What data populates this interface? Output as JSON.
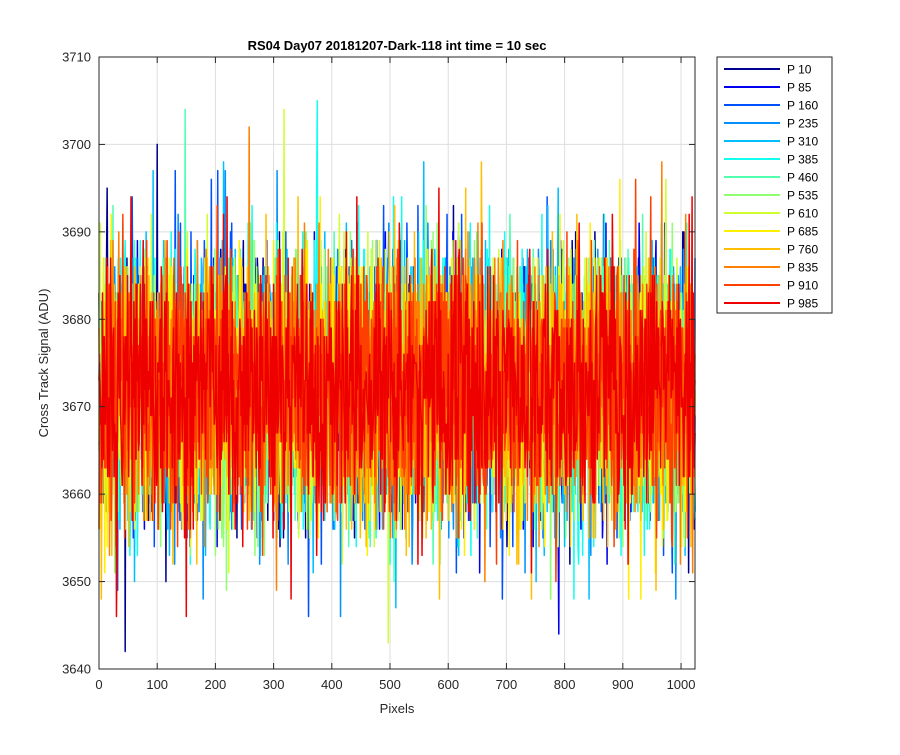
{
  "chart_data": {
    "type": "line",
    "title": "RS04 Day07 20181207-Dark-118 int time = 10 sec",
    "xlabel": "Pixels",
    "ylabel": "Cross Track Signal (ADU)",
    "xlim": [
      0,
      1024
    ],
    "ylim": [
      3640,
      3710
    ],
    "xticks": [
      0,
      100,
      200,
      300,
      400,
      500,
      600,
      700,
      800,
      900,
      1000
    ],
    "yticks": [
      3640,
      3650,
      3660,
      3670,
      3680,
      3690,
      3700,
      3710
    ],
    "grid": true,
    "legend_position": "outside-right",
    "noise_model": {
      "mean": 3672,
      "std": 7.5
    },
    "series": [
      {
        "name": "P 10",
        "color": "#00008F",
        "notable_points": [
          [
            100,
            3700
          ],
          [
            45,
            3642
          ]
        ]
      },
      {
        "name": "P 85",
        "color": "#0000EF",
        "notable_points": [
          [
            790,
            3644
          ]
        ]
      },
      {
        "name": "P 160",
        "color": "#0050FF",
        "notable_points": [
          [
            360,
            3646
          ]
        ]
      },
      {
        "name": "P 235",
        "color": "#0090FF",
        "notable_points": [
          [
            415,
            3646
          ]
        ]
      },
      {
        "name": "P 310",
        "color": "#00BFFF",
        "notable_points": [
          [
            510,
            3647
          ]
        ]
      },
      {
        "name": "P 385",
        "color": "#10FFEF",
        "notable_points": [
          [
            375,
            3705
          ]
        ]
      },
      {
        "name": "P 460",
        "color": "#50FFAF",
        "notable_points": [
          [
            148,
            3704
          ]
        ]
      },
      {
        "name": "P 535",
        "color": "#8FFF70",
        "notable_points": []
      },
      {
        "name": "P 610",
        "color": "#CFFF30",
        "notable_points": [
          [
            318,
            3704
          ],
          [
            497,
            3643
          ]
        ]
      },
      {
        "name": "P 685",
        "color": "#FFEF00",
        "notable_points": [
          [
            910,
            3648
          ]
        ]
      },
      {
        "name": "P 760",
        "color": "#FFBF00",
        "notable_points": [
          [
            585,
            3648
          ]
        ]
      },
      {
        "name": "P 835",
        "color": "#FF7F00",
        "notable_points": [
          [
            258,
            3702
          ],
          [
            967,
            3698
          ],
          [
            305,
            3649
          ]
        ]
      },
      {
        "name": "P 910",
        "color": "#FF3F00",
        "notable_points": []
      },
      {
        "name": "P 985",
        "color": "#EF0000",
        "notable_points": [
          [
            30,
            3646
          ],
          [
            150,
            3646
          ]
        ]
      }
    ]
  }
}
